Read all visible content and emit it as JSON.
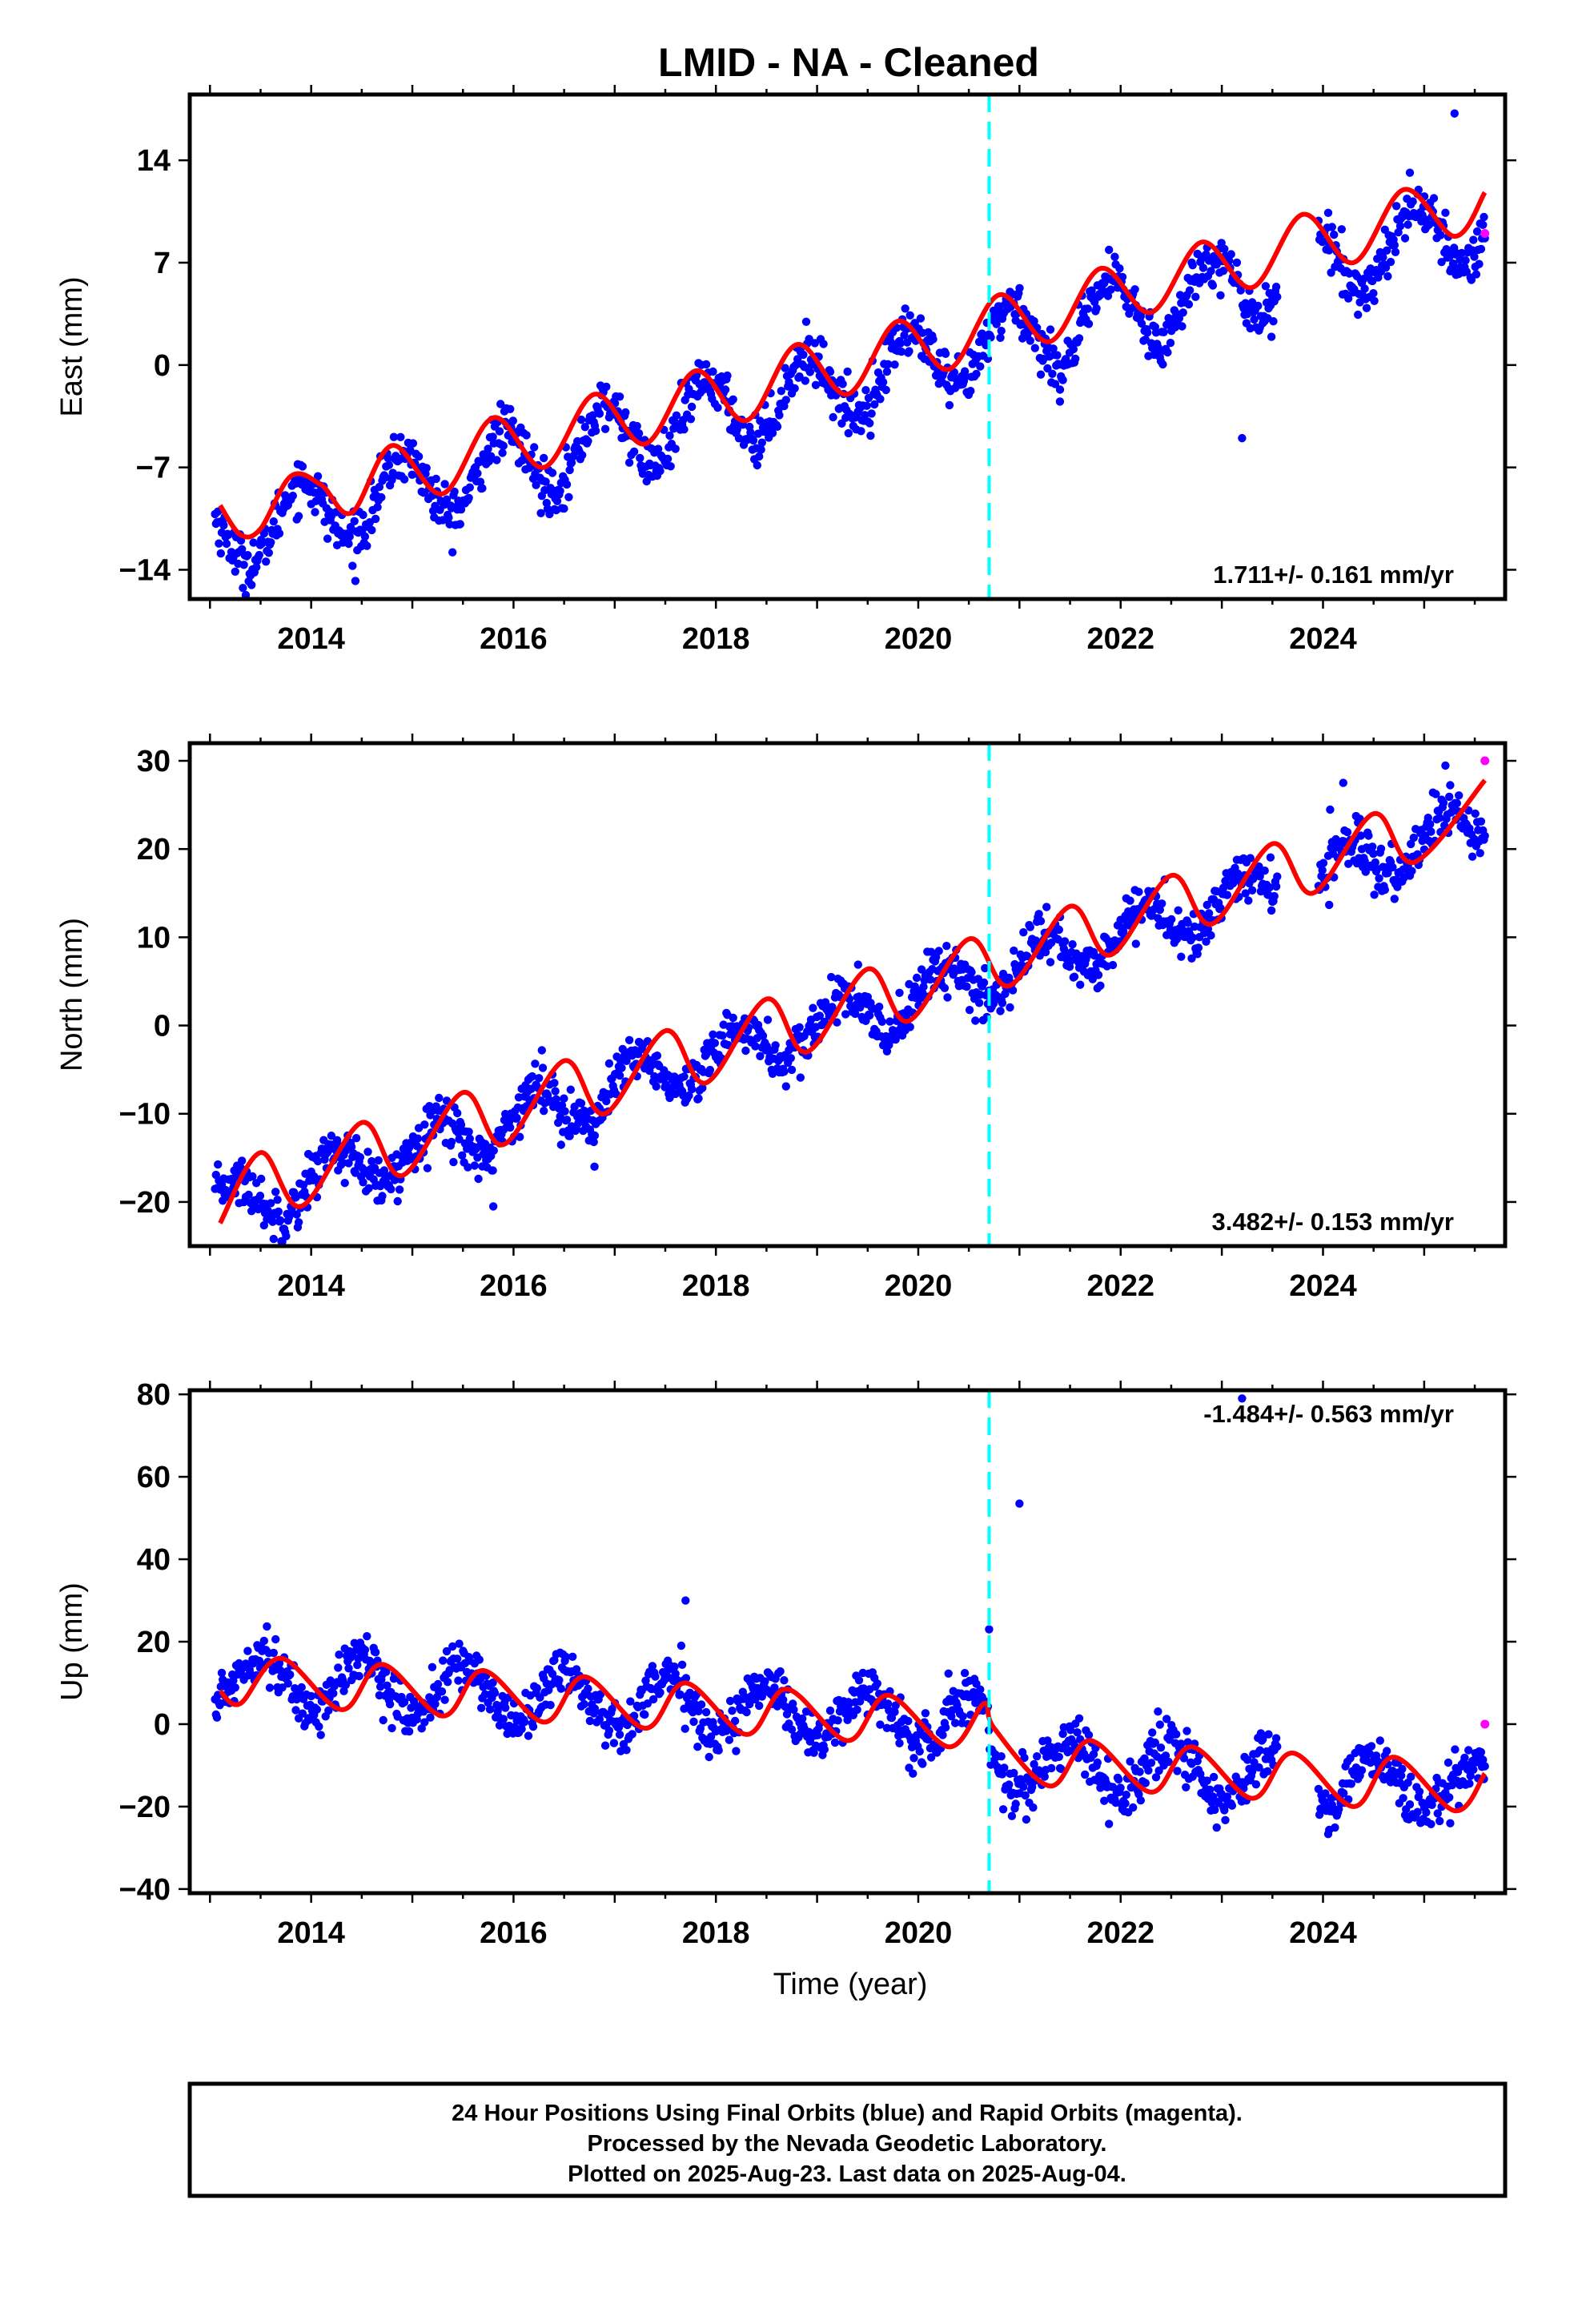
{
  "title": "LMID  - NA - Cleaned",
  "xlabel": "Time (year)",
  "colors": {
    "final_points": "#0000ff",
    "rapid_points": "#ff00ff",
    "model_fit": "#ff0000",
    "event_line": "#00ffff",
    "axes": "#000000"
  },
  "event_marker_year": 2020.7,
  "footer": {
    "line1": "24 Hour Positions Using Final Orbits (blue) and Rapid Orbits (magenta).",
    "line2": "Processed by the Nevada Geodetic Laboratory.",
    "line3": "Plotted on 2025-Aug-23. Last data on 2025-Aug-04."
  },
  "chart_data": [
    {
      "type": "scatter",
      "ylabel": "East (mm)",
      "rate_label": "1.711+/- 0.161 mm/yr",
      "rate_label_position": "bottom-right",
      "xlim": [
        2012.8,
        2025.8
      ],
      "ylim": [
        -16,
        18.5
      ],
      "xticks": [
        2014,
        2016,
        2018,
        2020,
        2022,
        2024
      ],
      "yticks": [
        -14,
        -7,
        0,
        7,
        14
      ],
      "trend": {
        "y0": -11.7,
        "rate": 1.711,
        "amp": 2.4,
        "phase": 2.2,
        "break_offset": 0.0
      },
      "rapid_point": {
        "x": 2025.6,
        "y": 9.0
      },
      "outliers": [
        {
          "x": 2023.2,
          "y": -5.0
        },
        {
          "x": 2021.4,
          "y": -2.5
        },
        {
          "x": 2025.3,
          "y": 17.2
        }
      ],
      "fit_samples": [
        [
          2013.1,
          -9.6
        ],
        [
          2013.3,
          -11.6
        ],
        [
          2013.5,
          -11.2
        ],
        [
          2013.8,
          -7.6
        ],
        [
          2014.1,
          -8.2
        ],
        [
          2014.4,
          -10.1
        ],
        [
          2014.8,
          -5.5
        ],
        [
          2015.3,
          -8.8
        ],
        [
          2015.8,
          -3.6
        ],
        [
          2016.3,
          -7.0
        ],
        [
          2016.8,
          -2.0
        ],
        [
          2017.3,
          -5.4
        ],
        [
          2017.8,
          -0.4
        ],
        [
          2018.3,
          -3.8
        ],
        [
          2018.8,
          1.4
        ],
        [
          2019.3,
          -2.0
        ],
        [
          2019.8,
          3.0
        ],
        [
          2020.3,
          -0.3
        ],
        [
          2020.8,
          4.8
        ],
        [
          2021.3,
          1.6
        ],
        [
          2021.8,
          6.6
        ],
        [
          2022.3,
          3.6
        ],
        [
          2022.8,
          8.4
        ],
        [
          2023.3,
          5.3
        ],
        [
          2023.8,
          10.3
        ],
        [
          2024.3,
          7.0
        ],
        [
          2024.8,
          12.0
        ],
        [
          2025.3,
          8.8
        ],
        [
          2025.6,
          11.8
        ]
      ]
    },
    {
      "type": "scatter",
      "ylabel": "North (mm)",
      "rate_label": "3.482+/- 0.153 mm/yr",
      "rate_label_position": "bottom-right",
      "xlim": [
        2012.8,
        2025.8
      ],
      "ylim": [
        -25,
        32
      ],
      "xticks": [
        2014,
        2016,
        2018,
        2020,
        2022,
        2024
      ],
      "yticks": [
        -20,
        -10,
        0,
        10,
        20,
        30
      ],
      "trend": {
        "y0": -20.8,
        "rate": 3.482,
        "amp": 2.8,
        "phase": 0.2,
        "break_offset": 0.0
      },
      "rapid_point": {
        "x": 2025.6,
        "y": 30.0
      },
      "outliers": [
        {
          "x": 2016.8,
          "y": -16.0
        },
        {
          "x": 2015.8,
          "y": -20.5
        },
        {
          "x": 2024.2,
          "y": 27.5
        }
      ],
      "fit_samples": [
        [
          2013.1,
          -22.4
        ],
        [
          2013.5,
          -14.4
        ],
        [
          2013.9,
          -20.5
        ],
        [
          2014.5,
          -11.0
        ],
        [
          2014.9,
          -17.0
        ],
        [
          2015.5,
          -7.6
        ],
        [
          2015.9,
          -13.5
        ],
        [
          2016.5,
          -4.0
        ],
        [
          2016.9,
          -10.0
        ],
        [
          2017.5,
          -0.6
        ],
        [
          2017.9,
          -6.5
        ],
        [
          2018.5,
          3.0
        ],
        [
          2018.9,
          -3.0
        ],
        [
          2019.5,
          6.4
        ],
        [
          2019.9,
          0.5
        ],
        [
          2020.5,
          9.8
        ],
        [
          2020.9,
          4.5
        ],
        [
          2021.5,
          13.5
        ],
        [
          2021.9,
          8.0
        ],
        [
          2022.5,
          17.0
        ],
        [
          2022.9,
          11.5
        ],
        [
          2023.5,
          20.6
        ],
        [
          2023.9,
          15.0
        ],
        [
          2024.5,
          24.0
        ],
        [
          2024.9,
          18.5
        ],
        [
          2025.6,
          27.8
        ]
      ]
    },
    {
      "type": "scatter",
      "ylabel": "Up (mm)",
      "rate_label": "-1.484+/- 0.563 mm/yr",
      "rate_label_position": "top-right",
      "xlim": [
        2012.8,
        2025.8
      ],
      "ylim": [
        -41,
        81
      ],
      "xticks": [
        2014,
        2016,
        2018,
        2020,
        2022,
        2024
      ],
      "yticks": [
        -40,
        -20,
        0,
        20,
        40,
        60,
        80
      ],
      "trend": {
        "y0": 11.5,
        "rate": -1.484,
        "amp": 6.5,
        "phase": -1.6,
        "break_offset": -9.0
      },
      "rapid_point": {
        "x": 2025.6,
        "y": 0.0
      },
      "outliers": [
        {
          "x": 2023.2,
          "y": 79.0
        },
        {
          "x": 2021.0,
          "y": 53.5
        },
        {
          "x": 2020.7,
          "y": 23.0
        },
        {
          "x": 2017.7,
          "y": 30.0
        }
      ],
      "fit_samples": [
        [
          2013.1,
          8.0
        ],
        [
          2013.3,
          5.0
        ],
        [
          2013.7,
          16.0
        ],
        [
          2014.3,
          3.5
        ],
        [
          2014.7,
          14.5
        ],
        [
          2015.3,
          2.0
        ],
        [
          2015.7,
          13.0
        ],
        [
          2016.3,
          0.5
        ],
        [
          2016.7,
          11.5
        ],
        [
          2017.3,
          -1.0
        ],
        [
          2017.7,
          10.0
        ],
        [
          2018.3,
          -2.5
        ],
        [
          2018.7,
          8.5
        ],
        [
          2019.3,
          -4.0
        ],
        [
          2019.7,
          7.0
        ],
        [
          2020.3,
          -5.5
        ],
        [
          2020.65,
          5.0
        ],
        [
          2020.75,
          -1.0
        ],
        [
          2021.3,
          -15.0
        ],
        [
          2021.7,
          -4.0
        ],
        [
          2022.3,
          -16.5
        ],
        [
          2022.7,
          -5.5
        ],
        [
          2023.3,
          -18.0
        ],
        [
          2023.7,
          -7.0
        ],
        [
          2024.3,
          -20.0
        ],
        [
          2024.7,
          -8.0
        ],
        [
          2025.3,
          -21.0
        ],
        [
          2025.6,
          -12.0
        ]
      ]
    }
  ]
}
